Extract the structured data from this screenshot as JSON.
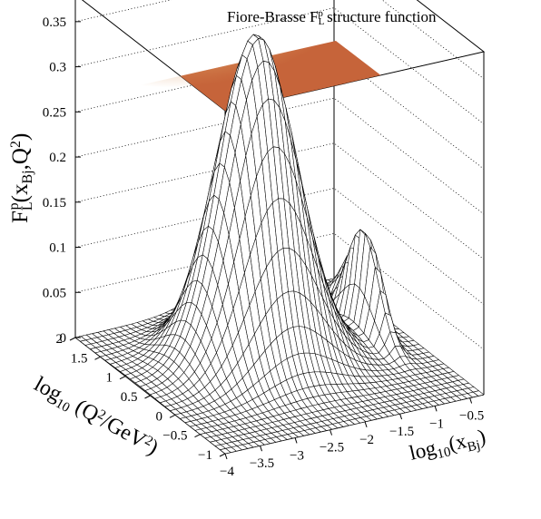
{
  "chart_data": {
    "type": "surface3d",
    "title": {
      "prefix": "Fiore-Brasse F",
      "sub": "L",
      "sup": "p",
      "suffix": " structure function"
    },
    "z_axis": {
      "label": {
        "base": "F",
        "sub": "L",
        "sup": "p",
        "args_open": "(x",
        "args_sub": "Bj",
        "args_mid": ",Q",
        "args_sup": "2",
        "args_close": ")"
      },
      "range": [
        0,
        0.38
      ],
      "ticks": [
        "0",
        "0.05",
        "0.1",
        "0.15",
        "0.2",
        "0.25",
        "0.3",
        "0.35"
      ]
    },
    "y_axis": {
      "label": {
        "pre": "log",
        "sub": "10",
        "mid": " (Q",
        "sup": "2",
        "mid2": "/GeV",
        "sup2": "2",
        "post": ")"
      },
      "range": [
        -1,
        2
      ],
      "ticks": [
        "−1",
        "−0.5",
        "0",
        "0.5",
        "1",
        "1.5",
        "2"
      ]
    },
    "x_axis": {
      "label": {
        "pre": "log",
        "sub": "10",
        "mid": "(x",
        "sub2": "Bj",
        "post": ")"
      },
      "range": [
        -4,
        -0.3
      ],
      "ticks": [
        "−4",
        "−3.5",
        "−3",
        "−2.5",
        "−2",
        "−1.5",
        "−1",
        "−0.5"
      ]
    },
    "surface_peak": {
      "log10x": -2.3,
      "log10Q2": 0.75,
      "value": 0.36
    },
    "top_projection": "colz",
    "grid": true,
    "colors": {
      "mesh": "#000000",
      "surface": "#ffffff",
      "palette_low": "#c25a2d",
      "palette_high": "#1d3be0"
    }
  }
}
